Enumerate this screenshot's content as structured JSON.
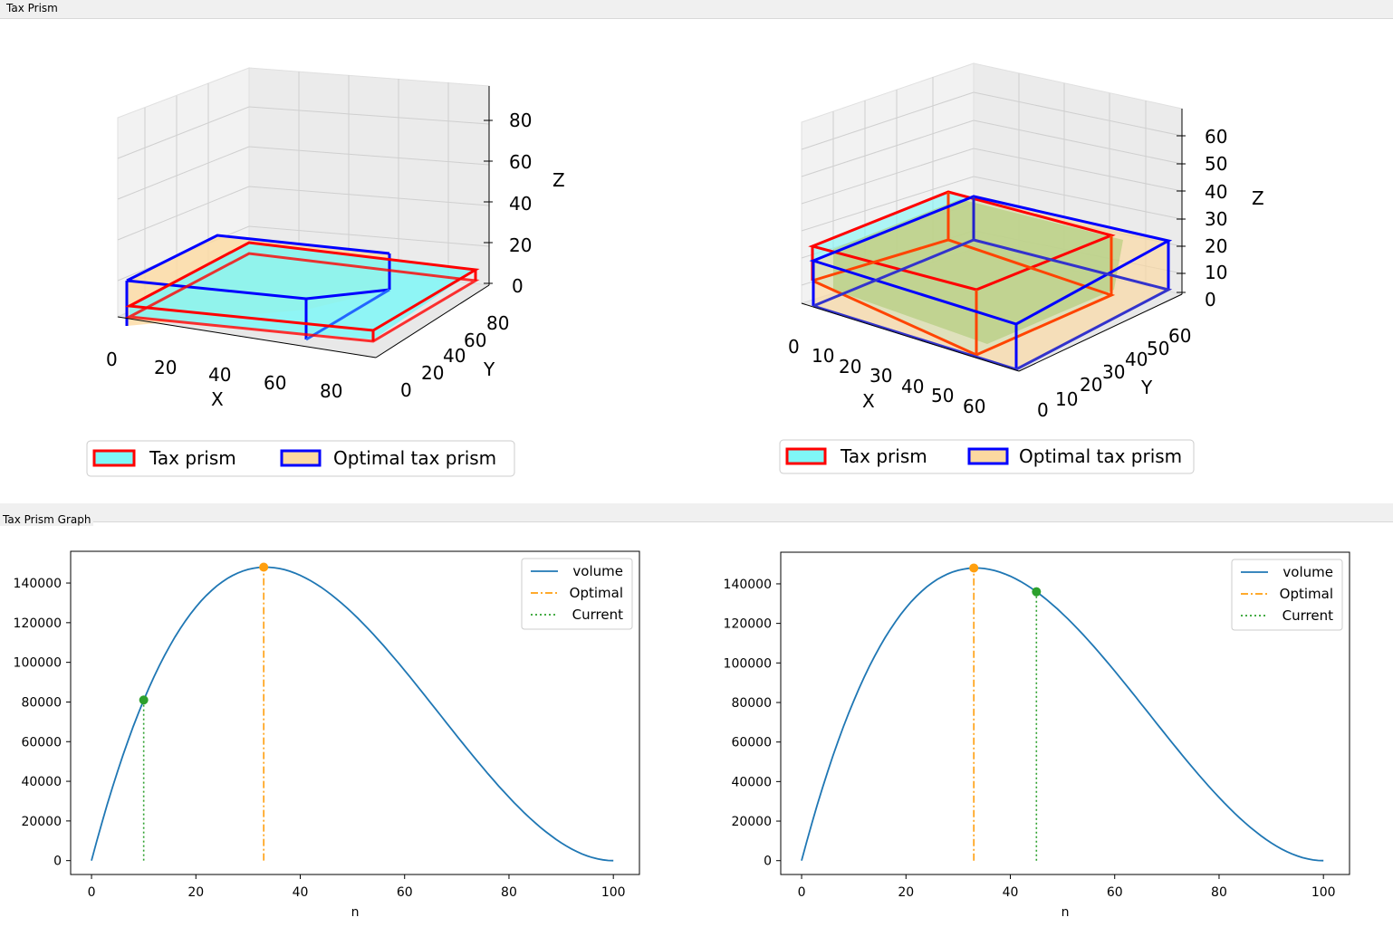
{
  "groups": {
    "top_title": "Tax Prism",
    "bottom_title": "Tax Prism Graph"
  },
  "colors": {
    "tax_edge": "#ff0000",
    "tax_fill": "#7ff7f7",
    "opt_edge": "#0000ff",
    "opt_fill": "#fcd9a0",
    "volume_line": "#1f77b4",
    "optimal_line": "#ff9f0e",
    "current_line": "#2ca02c"
  },
  "prisms": [
    {
      "axis_labels": {
        "x": "X",
        "y": "Y",
        "z": "Z"
      },
      "x_ticks": [
        "0",
        "20",
        "40",
        "60",
        "80"
      ],
      "y_ticks": [
        "0",
        "20",
        "40",
        "60",
        "80"
      ],
      "z_ticks": [
        "0",
        "20",
        "40",
        "60",
        "80"
      ],
      "legend": {
        "tax": "Tax prism",
        "optimal": "Optimal tax prism"
      }
    },
    {
      "axis_labels": {
        "x": "X",
        "y": "Y",
        "z": "Z"
      },
      "x_ticks": [
        "0",
        "10",
        "20",
        "30",
        "40",
        "50",
        "60"
      ],
      "y_ticks": [
        "0",
        "10",
        "20",
        "30",
        "40",
        "50",
        "60"
      ],
      "z_ticks": [
        "0",
        "10",
        "20",
        "30",
        "40",
        "50",
        "60"
      ],
      "legend": {
        "tax": "Tax prism",
        "optimal": "Optimal tax prism"
      }
    }
  ],
  "chart_data": [
    {
      "type": "line",
      "title": "",
      "xlabel": "n",
      "ylabel": "",
      "xlim": [
        -4,
        105
      ],
      "ylim": [
        -7000,
        156000
      ],
      "x_ticks": [
        0,
        20,
        40,
        60,
        80,
        100
      ],
      "y_ticks": [
        0,
        20000,
        40000,
        60000,
        80000,
        100000,
        120000,
        140000
      ],
      "x_tick_labels": [
        "0",
        "20",
        "40",
        "60",
        "80",
        "100"
      ],
      "y_tick_labels": [
        "0",
        "20000",
        "40000",
        "60000",
        "80000",
        "100000",
        "120000",
        "140000"
      ],
      "series_function": "volume = n * (100 - 2n)^2 style curve peaking at n=33",
      "optimal": {
        "x": 33,
        "y": 148000
      },
      "current": {
        "x": 10,
        "y": 81000
      },
      "legend": [
        "volume",
        "Optimal",
        "Current"
      ]
    },
    {
      "type": "line",
      "title": "",
      "xlabel": "n",
      "ylabel": "",
      "xlim": [
        -4,
        105
      ],
      "ylim": [
        -7000,
        156000
      ],
      "x_ticks": [
        0,
        20,
        40,
        60,
        80,
        100
      ],
      "y_ticks": [
        0,
        20000,
        40000,
        60000,
        80000,
        100000,
        120000,
        140000
      ],
      "x_tick_labels": [
        "0",
        "20",
        "40",
        "60",
        "80",
        "100"
      ],
      "y_tick_labels": [
        "0",
        "20000",
        "40000",
        "60000",
        "80000",
        "100000",
        "120000",
        "140000"
      ],
      "series_function": "volume = n * (100 - 2n)^2 style curve peaking at n=33",
      "optimal": {
        "x": 33,
        "y": 148000
      },
      "current": {
        "x": 45,
        "y": 136000
      },
      "legend": [
        "volume",
        "Optimal",
        "Current"
      ]
    }
  ]
}
